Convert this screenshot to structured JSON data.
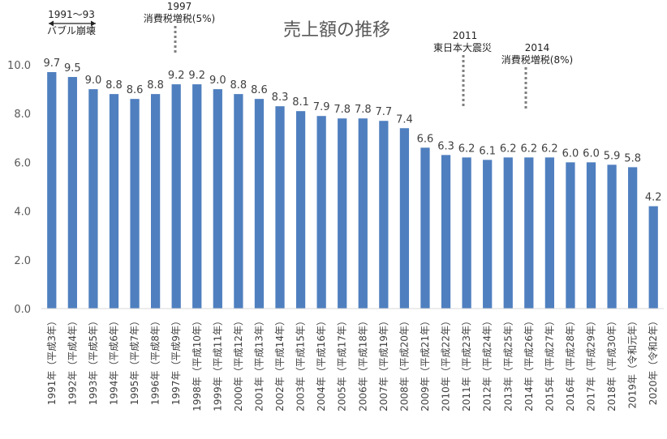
{
  "chart_data": {
    "type": "bar",
    "title": "売上額の推移",
    "categories": [
      "1991年（平成3年）",
      "1992年（平成4年）",
      "1993年（平成5年）",
      "1994年（平成6年）",
      "1995年（平成7年）",
      "1996年（平成8年）",
      "1997年（平成9年）",
      "1998年（平成10年）",
      "1999年（平成11年）",
      "2000年（平成12年）",
      "2001年（平成13年）",
      "2002年（平成14年）",
      "2003年（平成15年）",
      "2004年（平成16年）",
      "2005年（平成17年）",
      "2006年（平成18年）",
      "2007年（平成19年）",
      "2008年（平成20年）",
      "2009年（平成21年）",
      "2010年（平成22年）",
      "2011年（平成23年）",
      "2012年（平成24年）",
      "2013年（平成25年）",
      "2014年（平成26年）",
      "2015年（平成27年）",
      "2016年（平成28年）",
      "2017年（平成29年）",
      "2018年（平成30年）",
      "2019年（令和元年）",
      "2020年（令和2年）"
    ],
    "values": [
      9.7,
      9.5,
      9.0,
      8.8,
      8.6,
      8.8,
      9.2,
      9.2,
      9.0,
      8.8,
      8.6,
      8.3,
      8.1,
      7.9,
      7.8,
      7.8,
      7.7,
      7.4,
      6.6,
      6.3,
      6.2,
      6.1,
      6.2,
      6.2,
      6.2,
      6.0,
      6.0,
      5.9,
      5.8,
      4.2
    ],
    "value_labels": [
      "9.7",
      "9.5",
      "9.0",
      "8.8",
      "8.6",
      "8.8",
      "9.2",
      "9.2",
      "9.0",
      "8.8",
      "8.6",
      "8.3",
      "8.1",
      "7.9",
      "7.8",
      "7.8",
      "7.7",
      "7.4",
      "6.6",
      "6.3",
      "6.2",
      "6.1",
      "6.2",
      "6.2",
      "6.2",
      "6.0",
      "6.0",
      "5.9",
      "5.8",
      "4.2"
    ],
    "y_ticks": [
      "0.0",
      "2.0",
      "4.0",
      "6.0",
      "8.0",
      "10.0"
    ],
    "ylim": [
      0,
      10
    ],
    "bar_color": "#4f7fbf",
    "grid": false,
    "annotations": {
      "bubble": {
        "year": "1991〜93",
        "text": "バブル崩壊"
      },
      "tax1997": {
        "year": "1997",
        "text": "消費税増税(5%)"
      },
      "quake2011": {
        "year": "2011",
        "text": "東日本大震災"
      },
      "tax2014": {
        "year": "2014",
        "text": "消費税増税(8%)"
      }
    }
  }
}
